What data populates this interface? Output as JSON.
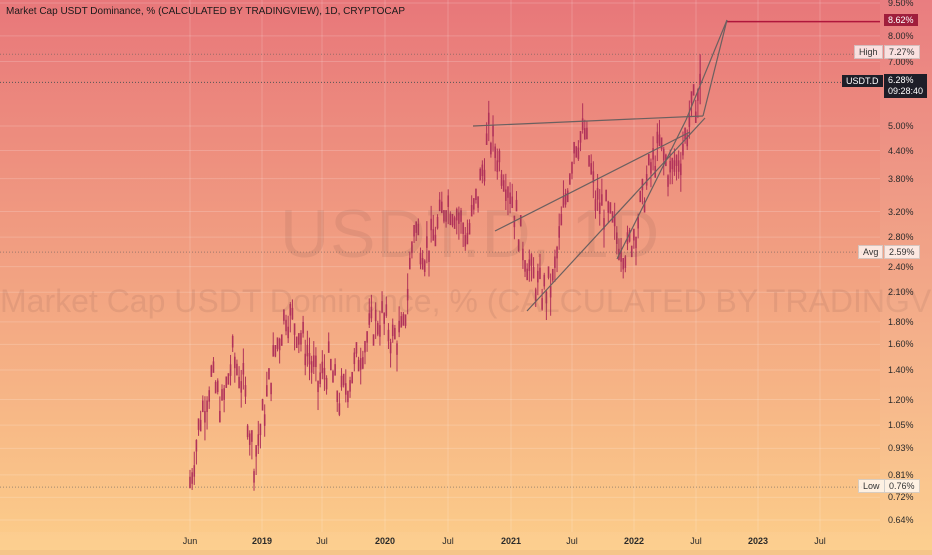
{
  "header": {
    "title": "Market Cap USDT Dominance, % (CALCULATED BY TRADINGVIEW), 1D, CRYPTOCAP"
  },
  "watermark": {
    "symbol": "USDT.D, 1D",
    "name": "Market Cap USDT Dominance, % (CALCULATED BY TRADINGVIEW)"
  },
  "colors": {
    "background_top": "#e8777a",
    "background_bottom": "#fccd8a",
    "candle": "#b0325a",
    "trendline": "#6b6060",
    "target_line": "#b0163c",
    "last_price_line": "#555555"
  },
  "chart_data": {
    "type": "line",
    "scale": "log",
    "title": "Market Cap USDT Dominance, % (CALCULATED BY TRADINGVIEW), 1D, CRYPTOCAP",
    "x_tick_labels": [
      "Jun",
      "2019",
      "Jul",
      "2020",
      "Jul",
      "2021",
      "Jul",
      "2022",
      "Jul",
      "2023",
      "Jul"
    ],
    "y_tick_labels": [
      "9.50%",
      "8.00%",
      "7.00%",
      "5.00%",
      "4.40%",
      "3.80%",
      "3.20%",
      "2.80%",
      "2.40%",
      "2.10%",
      "1.80%",
      "1.60%",
      "1.40%",
      "1.20%",
      "1.05%",
      "0.93%",
      "0.81%",
      "0.72%",
      "0.64%"
    ],
    "y_tick_values": [
      9.5,
      8.0,
      7.0,
      5.0,
      4.4,
      3.8,
      3.2,
      2.8,
      2.4,
      2.1,
      1.8,
      1.6,
      1.4,
      1.2,
      1.05,
      0.93,
      0.81,
      0.72,
      0.64
    ],
    "grid": true,
    "series": [
      {
        "values_by_month": [
          {
            "x": "2018-06",
            "y": 0.78
          },
          {
            "x": "2018-07",
            "y": 1.1
          },
          {
            "x": "2018-08",
            "y": 1.35
          },
          {
            "x": "2018-09",
            "y": 1.15
          },
          {
            "x": "2018-10",
            "y": 1.5
          },
          {
            "x": "2018-11",
            "y": 1.3
          },
          {
            "x": "2018-12",
            "y": 0.88
          },
          {
            "x": "2019-01",
            "y": 1.15
          },
          {
            "x": "2019-02",
            "y": 1.55
          },
          {
            "x": "2019-03",
            "y": 1.9
          },
          {
            "x": "2019-04",
            "y": 1.75
          },
          {
            "x": "2019-05",
            "y": 1.55
          },
          {
            "x": "2019-06",
            "y": 1.3
          },
          {
            "x": "2019-07",
            "y": 1.45
          },
          {
            "x": "2019-08",
            "y": 1.2
          },
          {
            "x": "2019-09",
            "y": 1.35
          },
          {
            "x": "2019-10",
            "y": 1.55
          },
          {
            "x": "2019-11",
            "y": 1.75
          },
          {
            "x": "2019-12",
            "y": 1.85
          },
          {
            "x": "2020-01",
            "y": 1.65
          },
          {
            "x": "2020-02",
            "y": 1.7
          },
          {
            "x": "2020-03",
            "y": 3.0
          },
          {
            "x": "2020-04",
            "y": 2.6
          },
          {
            "x": "2020-05",
            "y": 2.85
          },
          {
            "x": "2020-06",
            "y": 3.4
          },
          {
            "x": "2020-07",
            "y": 3.2
          },
          {
            "x": "2020-08",
            "y": 2.8
          },
          {
            "x": "2020-09",
            "y": 3.5
          },
          {
            "x": "2020-10",
            "y": 4.8
          },
          {
            "x": "2020-11",
            "y": 4.2
          },
          {
            "x": "2020-12",
            "y": 3.6
          },
          {
            "x": "2021-01",
            "y": 2.8
          },
          {
            "x": "2021-02",
            "y": 2.3
          },
          {
            "x": "2021-03",
            "y": 2.1
          },
          {
            "x": "2021-04",
            "y": 2.2
          },
          {
            "x": "2021-05",
            "y": 3.2
          },
          {
            "x": "2021-06",
            "y": 4.6
          },
          {
            "x": "2021-07",
            "y": 4.8
          },
          {
            "x": "2021-08",
            "y": 3.4
          },
          {
            "x": "2021-09",
            "y": 3.2
          },
          {
            "x": "2021-10",
            "y": 2.8
          },
          {
            "x": "2021-11",
            "y": 2.6
          },
          {
            "x": "2021-12",
            "y": 3.1
          },
          {
            "x": "2022-01",
            "y": 3.9
          },
          {
            "x": "2022-02",
            "y": 4.5
          },
          {
            "x": "2022-03",
            "y": 3.9
          },
          {
            "x": "2022-04",
            "y": 4.3
          },
          {
            "x": "2022-05",
            "y": 5.4
          },
          {
            "x": "2022-06",
            "y": 6.28
          }
        ]
      }
    ],
    "annotations": [
      {
        "label": "High",
        "value": "7.27%"
      },
      {
        "label": "Avg",
        "value": "2.59%"
      },
      {
        "label": "Low",
        "value": "0.76%"
      },
      {
        "label": "USDT.D",
        "value": "6.28%",
        "countdown": "09:28:40"
      },
      {
        "label": "",
        "value": "8.62%"
      }
    ]
  }
}
